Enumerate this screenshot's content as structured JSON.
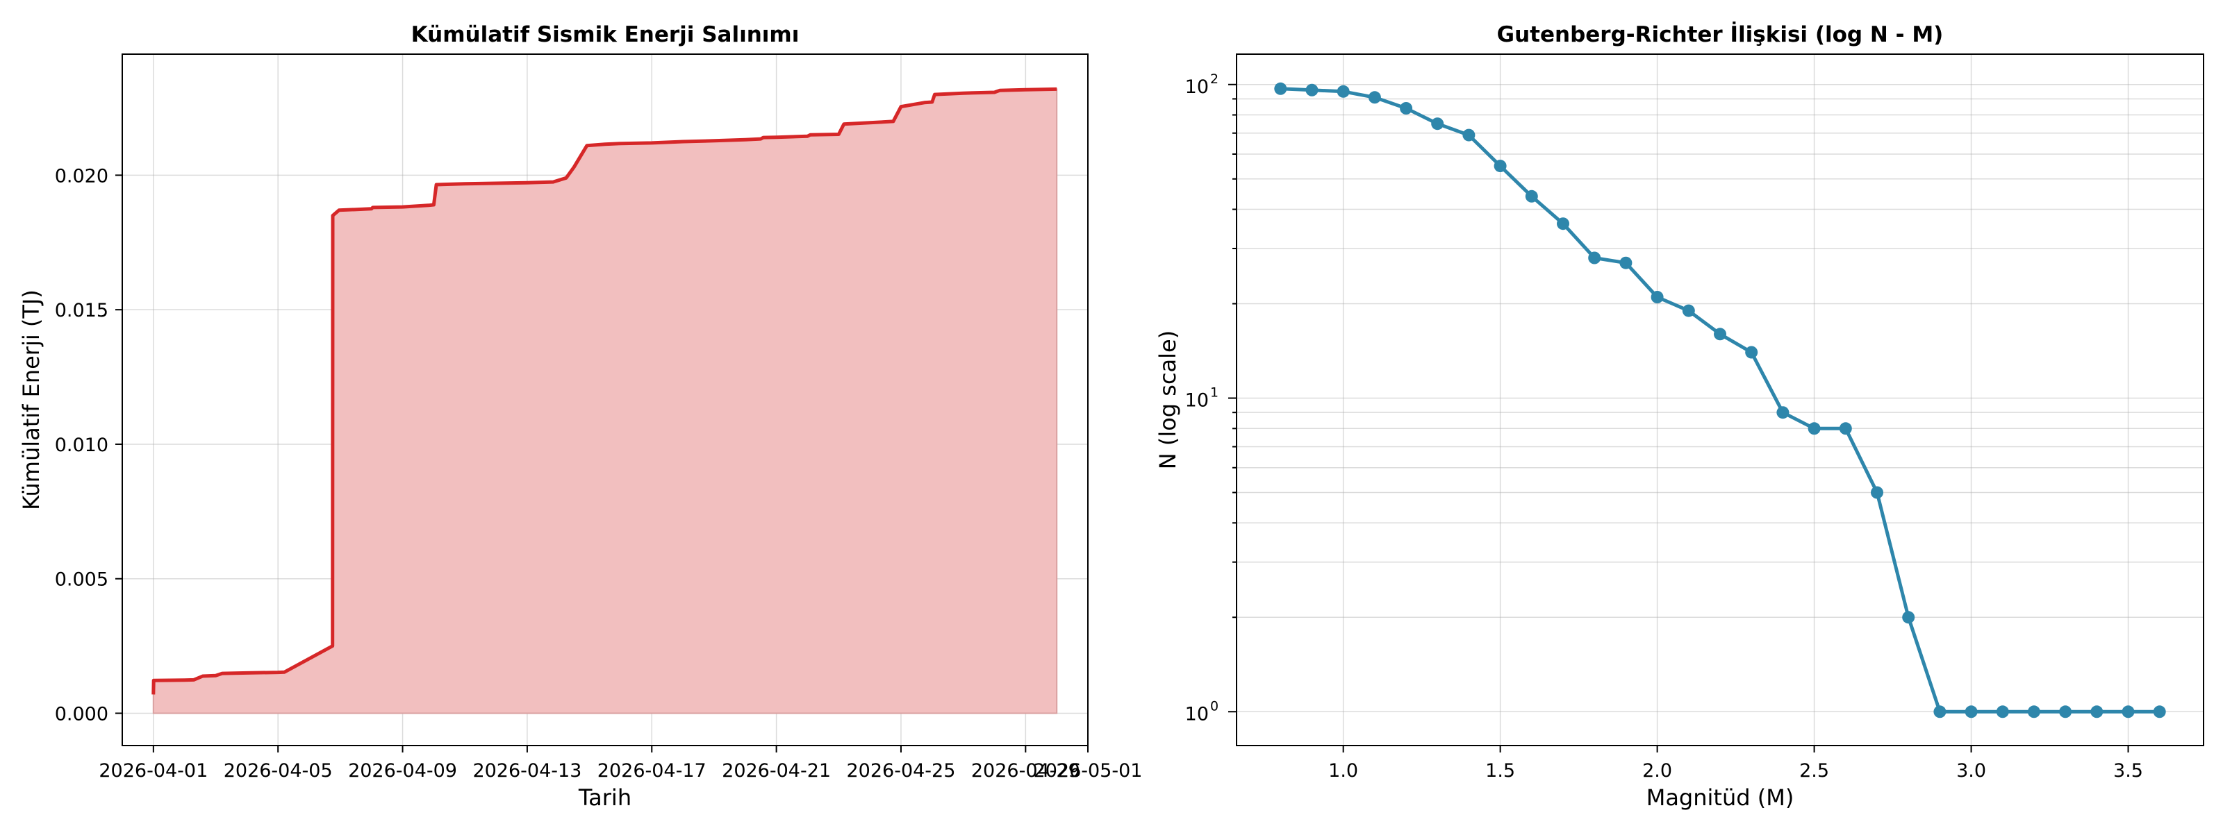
{
  "chart_data": [
    {
      "type": "area",
      "title": "Kümülatif Sismik Enerji Salınımı",
      "xlabel": "Tarih",
      "ylabel": "Kümülatif Enerji (TJ)",
      "x_ticks": [
        "2026-04-01",
        "2026-04-05",
        "2026-04-09",
        "2026-04-13",
        "2026-04-17",
        "2026-04-21",
        "2026-04-25",
        "2026-04-29",
        "2026-05-01"
      ],
      "y_ticks": [
        "0.000",
        "0.005",
        "0.010",
        "0.015",
        "0.020"
      ],
      "xlim": [
        "2026-03-31",
        "2026-05-01"
      ],
      "ylim": [
        -0.0012,
        0.0245
      ],
      "grid": true,
      "colors": {
        "line": "#d62728",
        "fill": "#f2bfbf"
      },
      "points": [
        [
          "2026-04-01T00:00",
          0.0007
        ],
        [
          "2026-04-01T00:10",
          0.00122
        ],
        [
          "2026-04-02T00:00",
          0.00123
        ],
        [
          "2026-04-02T07:00",
          0.00124
        ],
        [
          "2026-04-02T14:00",
          0.00138
        ],
        [
          "2026-04-03T00:00",
          0.0014
        ],
        [
          "2026-04-03T05:00",
          0.00148
        ],
        [
          "2026-04-04T00:00",
          0.0015
        ],
        [
          "2026-04-05T00:00",
          0.00152
        ],
        [
          "2026-04-05T05:00",
          0.00153
        ],
        [
          "2026-04-06T18:00",
          0.0025
        ],
        [
          "2026-04-06T18:10",
          0.0185
        ],
        [
          "2026-04-06T23:00",
          0.0187
        ],
        [
          "2026-04-08T00:00",
          0.01875
        ],
        [
          "2026-04-08T01:00",
          0.0188
        ],
        [
          "2026-04-09T00:00",
          0.01882
        ],
        [
          "2026-04-09T20:00",
          0.01888
        ],
        [
          "2026-04-10T00:00",
          0.0189
        ],
        [
          "2026-04-10T02:00",
          0.01965
        ],
        [
          "2026-04-11T00:00",
          0.01968
        ],
        [
          "2026-04-12T00:00",
          0.0197
        ],
        [
          "2026-04-13T00:00",
          0.01972
        ],
        [
          "2026-04-13T20:00",
          0.01975
        ],
        [
          "2026-04-14T06:00",
          0.0199
        ],
        [
          "2026-04-14T12:00",
          0.0203
        ],
        [
          "2026-04-14T22:00",
          0.0211
        ],
        [
          "2026-04-15T12:00",
          0.02115
        ],
        [
          "2026-04-16T00:00",
          0.02118
        ],
        [
          "2026-04-17T00:00",
          0.0212
        ],
        [
          "2026-04-18T00:00",
          0.02125
        ],
        [
          "2026-04-19T00:00",
          0.02128
        ],
        [
          "2026-04-20T00:00",
          0.02132
        ],
        [
          "2026-04-20T12:00",
          0.02135
        ],
        [
          "2026-04-20T14:00",
          0.0214
        ],
        [
          "2026-04-21T00:00",
          0.02141
        ],
        [
          "2026-04-22T00:00",
          0.02145
        ],
        [
          "2026-04-22T02:00",
          0.0215
        ],
        [
          "2026-04-23T00:00",
          0.02152
        ],
        [
          "2026-04-23T04:00",
          0.0219
        ],
        [
          "2026-04-24T00:00",
          0.02195
        ],
        [
          "2026-04-24T18:00",
          0.022
        ],
        [
          "2026-04-25T00:00",
          0.02255
        ],
        [
          "2026-04-25T18:00",
          0.0227
        ],
        [
          "2026-04-26T00:00",
          0.02272
        ],
        [
          "2026-04-26T02:00",
          0.023
        ],
        [
          "2026-04-27T00:00",
          0.02305
        ],
        [
          "2026-04-28T00:00",
          0.02308
        ],
        [
          "2026-04-28T04:00",
          0.02315
        ],
        [
          "2026-04-29T00:00",
          0.02318
        ],
        [
          "2026-04-30T00:00",
          0.0232
        ]
      ]
    },
    {
      "type": "line",
      "title": "Gutenberg-Richter İlişkisi (log N - M)",
      "xlabel": "Magnitüd (M)",
      "ylabel": "N (log scale)",
      "yscale": "log",
      "x_ticks": [
        "1.0",
        "1.5",
        "2.0",
        "2.5",
        "3.0",
        "3.5"
      ],
      "y_ticks": [
        {
          "base": "10",
          "exp": "0"
        },
        {
          "base": "10",
          "exp": "1"
        },
        {
          "base": "10",
          "exp": "2"
        }
      ],
      "xlim": [
        0.66,
        3.74
      ],
      "ylim": [
        0.78,
        125
      ],
      "grid": true,
      "colors": {
        "line": "#2e86ab"
      },
      "series": [
        {
          "x": [
            0.8,
            0.9,
            1.0,
            1.1,
            1.2,
            1.3,
            1.4,
            1.5,
            1.6,
            1.7,
            1.8,
            1.9,
            2.0,
            2.1,
            2.2,
            2.3,
            2.4,
            2.5,
            2.6,
            2.7,
            2.8,
            2.9,
            3.0,
            3.1,
            3.2,
            3.3,
            3.4,
            3.5,
            3.6
          ],
          "y": [
            97,
            96,
            95,
            91,
            84,
            75,
            69,
            55,
            44,
            36,
            28,
            27,
            21,
            19,
            16,
            14,
            9,
            8,
            8,
            5,
            2,
            1,
            1,
            1,
            1,
            1,
            1,
            1,
            1
          ]
        }
      ]
    }
  ]
}
